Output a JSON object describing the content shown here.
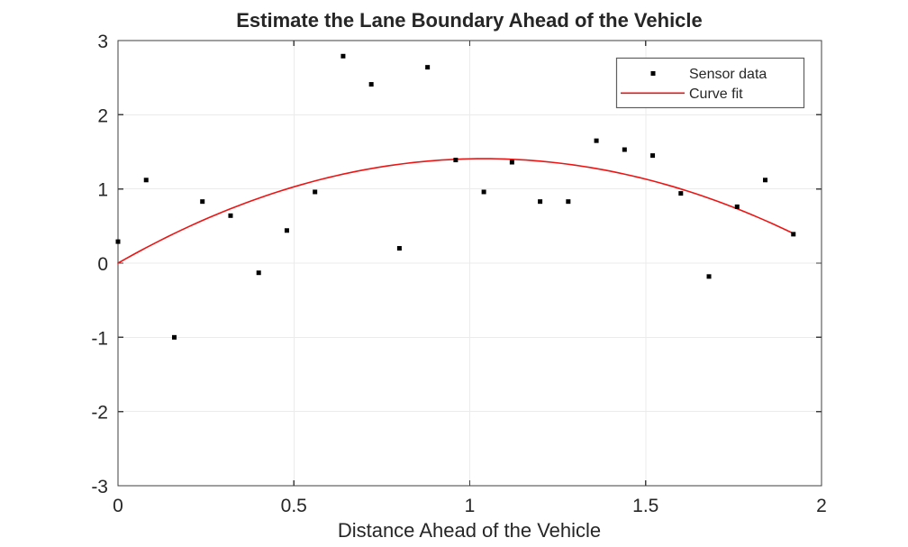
{
  "figure": {
    "background": "#ffffff"
  },
  "colors": {
    "grid": "#ebebeb",
    "axis_box": "#3f3f3f",
    "text": "#262626",
    "curve": "#ee1414",
    "marker": "#000000",
    "legend_border": "#5f5f5f",
    "legend_background": "#ffffff"
  },
  "chart_data": {
    "type": "scatter",
    "title": "Estimate the Lane Boundary Ahead of the Vehicle",
    "xlabel": "Distance Ahead of the Vehicle",
    "ylabel": "",
    "xlim": [
      0,
      2
    ],
    "ylim": [
      -3,
      3
    ],
    "grid": true,
    "xticks": {
      "values": [
        0,
        0.5,
        1,
        1.5,
        2
      ],
      "labels": [
        "0",
        "0.5",
        "1",
        "1.5",
        "2"
      ]
    },
    "yticks": {
      "values": [
        -3,
        -2,
        -1,
        0,
        1,
        2,
        3
      ],
      "labels": [
        "-3",
        "-2",
        "-1",
        "0",
        "1",
        "2",
        "3"
      ]
    },
    "legend": {
      "position": "northeast",
      "entries": [
        {
          "label": "Sensor data",
          "icon": "square-marker",
          "color": "#000000"
        },
        {
          "label": "Curve fit",
          "icon": "line",
          "color": "#ee1414"
        }
      ]
    },
    "series": [
      {
        "name": "Sensor data",
        "type": "scatter",
        "marker": "square",
        "color": "#000000",
        "x": [
          0,
          0.08,
          0.16,
          0.24,
          0.32,
          0.4,
          0.48,
          0.56,
          0.64,
          0.72,
          0.8,
          0.88,
          0.96,
          1.04,
          1.12,
          1.2,
          1.28,
          1.36,
          1.44,
          1.52,
          1.6,
          1.68,
          1.76,
          1.84,
          1.92
        ],
        "y": [
          0.29,
          1.12,
          -1.0,
          0.83,
          0.64,
          -0.13,
          0.44,
          0.96,
          2.79,
          2.41,
          0.2,
          2.64,
          1.39,
          0.96,
          1.36,
          0.83,
          0.83,
          1.65,
          1.53,
          1.45,
          0.94,
          -0.18,
          0.76,
          1.12,
          0.39
        ]
      },
      {
        "name": "Curve fit",
        "type": "line",
        "color": "#ee1414",
        "fit": "quadratic",
        "coefficients": [
          -1.302,
          2.708,
          0
        ],
        "x_range": [
          0,
          1.92
        ]
      }
    ]
  }
}
